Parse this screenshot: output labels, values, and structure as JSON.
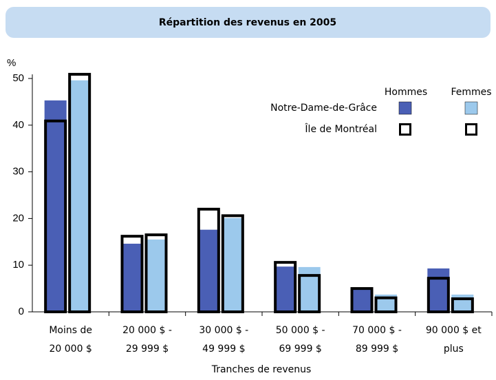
{
  "chart_data": {
    "type": "bar",
    "title": "Répartition des revenus en 2005",
    "y_unit": "%",
    "x_axis_label": "Tranches de revenus",
    "categories": [
      [
        "Moins de",
        "20 000 $"
      ],
      [
        "20 000 $ -",
        "29 999 $"
      ],
      [
        "30 000 $ -",
        "49 999 $"
      ],
      [
        "50 000 $ -",
        "69 999 $"
      ],
      [
        "70 000 $ -",
        "89 999 $"
      ],
      [
        "90 000 $ et",
        "plus"
      ]
    ],
    "series": [
      {
        "name": "Hommes",
        "region": "Notre-Dame-de-Grâce",
        "style": "filled",
        "color": "#4a5fb5",
        "values": [
          45.3,
          14.6,
          17.6,
          9.7,
          4.9,
          9.3
        ]
      },
      {
        "name": "Femmes",
        "region": "Notre-Dame-de-Grâce",
        "style": "filled",
        "color": "#9cc9ec",
        "values": [
          49.6,
          15.5,
          20.1,
          9.6,
          3.7,
          3.7
        ]
      },
      {
        "name": "Hommes",
        "region": "Île de Montréal",
        "style": "outline",
        "color": "#000000",
        "values": [
          40.9,
          16.2,
          22.0,
          10.6,
          5.0,
          7.2
        ]
      },
      {
        "name": "Femmes",
        "region": "Île de Montréal",
        "style": "outline",
        "color": "#000000",
        "values": [
          50.9,
          16.5,
          20.6,
          7.8,
          3.0,
          2.8
        ]
      }
    ],
    "ylim": [
      0,
      50
    ],
    "yticks": [
      0,
      10,
      20,
      30,
      40,
      50
    ]
  }
}
